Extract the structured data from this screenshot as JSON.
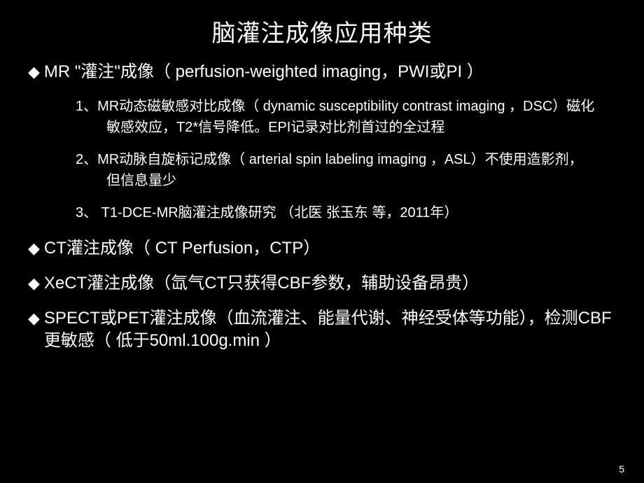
{
  "slide": {
    "title": "脑灌注成像应用种类",
    "bullets": [
      {
        "text": "MR \"灌注\"成像（ perfusion-weighted imaging，PWI或PI ）"
      },
      {
        "text": "CT灌注成像（ CT Perfusion，CTP）"
      },
      {
        "text": "XeCT灌注成像（氙气CT只获得CBF参数，辅助设备昂贵）"
      },
      {
        "text": "SPECT或PET灌注成像（血流灌注、能量代谢、神经受体等功能），检测CBF更敏感（ 低于50ml.100g.min ）"
      }
    ],
    "sub_items": [
      "1、MR动态磁敏感对比成像（ dynamic susceptibility contrast imaging ，DSC）磁化敏感效应，T2*信号降低。EPI记录对比剂首过的全过程",
      "2、MR动脉自旋标记成像（ arterial spin labeling imaging ，ASL）不使用造影剂，但信息量少",
      "3、 T1-DCE-MR脑灌注成像研究  （北医   张玉东  等，2011年）"
    ],
    "page_number": "5",
    "style": {
      "background_color": "#000000",
      "text_color": "#ffffff",
      "title_fontsize": 34,
      "bullet_fontsize": 24,
      "sub_fontsize": 20,
      "pagenum_fontsize": 14
    }
  }
}
